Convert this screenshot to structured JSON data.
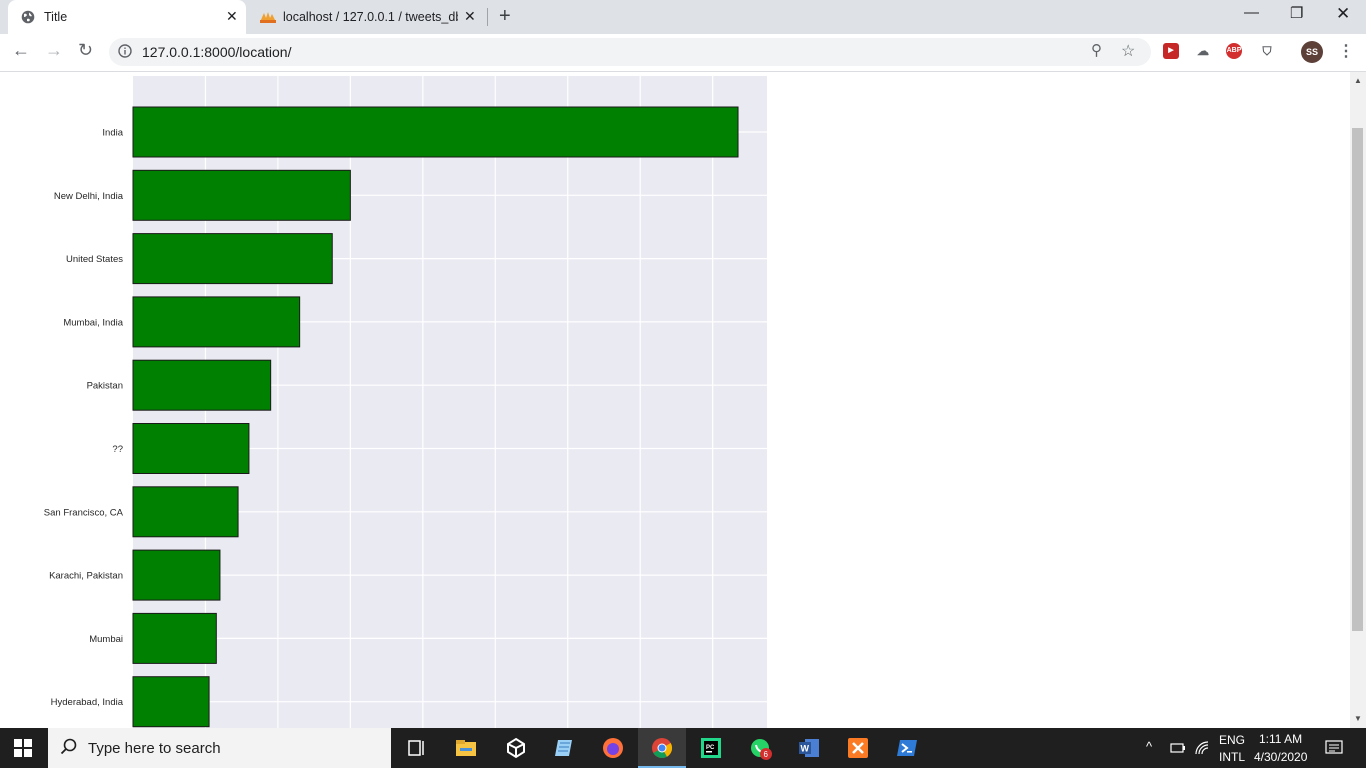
{
  "browser": {
    "tabs": [
      {
        "title": "Title",
        "active": true
      },
      {
        "title": "localhost / 127.0.0.1 / tweets_db",
        "active": false
      }
    ],
    "url": "127.0.0.1:8000/location/",
    "profile_initials": "SS",
    "extensions": [
      "red-arrow-icon",
      "cloud-icon",
      "ABP",
      "shield-icon"
    ]
  },
  "chart_data": {
    "type": "bar",
    "orientation": "horizontal",
    "categories": [
      "India",
      "New Delhi, India",
      "United States",
      "Mumbai, India",
      "Pakistan",
      "??",
      "San Francisco, CA",
      "Karachi, Pakistan",
      "Mumbai",
      "Hyderabad, India"
    ],
    "values": [
      167,
      60,
      55,
      46,
      38,
      32,
      29,
      24,
      23,
      21
    ],
    "xlim": [
      0,
      175
    ],
    "grid": true,
    "bar_color": "#008000",
    "background": "#eaeaf2"
  },
  "taskbar": {
    "search_placeholder": "Type here to search",
    "whatsapp_badge": "6",
    "lang_line1": "ENG",
    "lang_line2": "INTL",
    "time": "1:11 AM",
    "date": "4/30/2020"
  }
}
